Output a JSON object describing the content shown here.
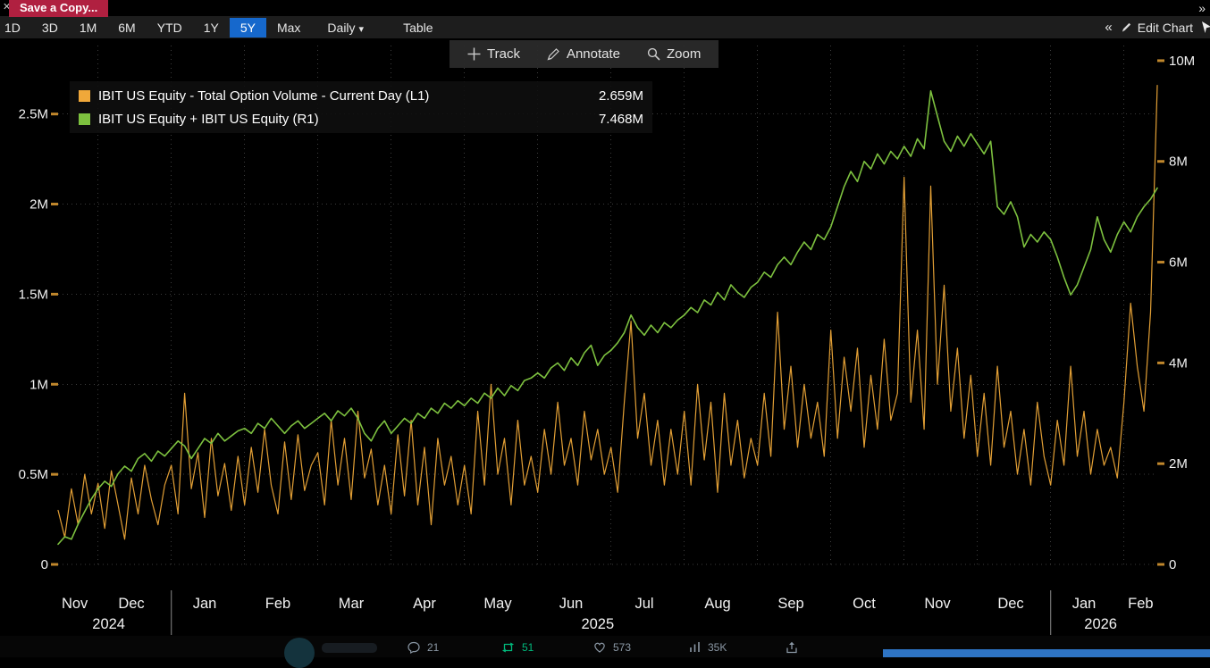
{
  "window": {
    "close_label": "✕",
    "save_copy_label": "Save a Copy...",
    "expand_icon": "»"
  },
  "toolbar": {
    "periods": [
      "1D",
      "3D",
      "1M",
      "6M",
      "YTD",
      "1Y",
      "5Y",
      "Max"
    ],
    "selected": "5Y",
    "frequency": "Daily",
    "frequency_caret": "▾",
    "table": "Table",
    "collapse": "«",
    "edit_chart": "Edit Chart"
  },
  "chart_tools": {
    "track": "Track",
    "annotate": "Annotate",
    "zoom": "Zoom"
  },
  "legend": [
    {
      "color": "#f0a83a",
      "label": "IBIT US Equity - Total Option Volume - Current Day (L1)",
      "value": "2.659M"
    },
    {
      "color": "#7dc13f",
      "label": "IBIT US Equity + IBIT US Equity (R1)",
      "value": "7.468M"
    }
  ],
  "chart_data": {
    "type": "line",
    "frequency": "Daily",
    "range": "5Y",
    "background": "#000000",
    "grid": "dotted",
    "left_axis": {
      "ticks": [
        "0",
        "0.5M",
        "1M",
        "1.5M",
        "2M",
        "2.5M"
      ],
      "tick_values": [
        0,
        0.5,
        1,
        1.5,
        2,
        2.5
      ],
      "scale_max": 2.88,
      "tick_color": "#c0872c"
    },
    "right_axis": {
      "ticks": [
        "0",
        "2M",
        "4M",
        "6M",
        "8M",
        "10M"
      ],
      "tick_values": [
        0,
        2,
        4,
        6,
        8,
        10
      ],
      "scale_max": 10.3,
      "tick_color": "#c0872c"
    },
    "x_axis": {
      "months": [
        {
          "label": "Nov",
          "start": 0,
          "center": 2.5
        },
        {
          "label": "Dec",
          "start": 6,
          "center": 11
        },
        {
          "label": "Jan",
          "start": 17,
          "center": 22,
          "sep": true
        },
        {
          "label": "Feb",
          "start": 28,
          "center": 33
        },
        {
          "label": "Mar",
          "start": 39,
          "center": 44
        },
        {
          "label": "Apr",
          "start": 50,
          "center": 55
        },
        {
          "label": "May",
          "start": 61,
          "center": 66
        },
        {
          "label": "Jun",
          "start": 72,
          "center": 77
        },
        {
          "label": "Jul",
          "start": 83,
          "center": 88
        },
        {
          "label": "Aug",
          "start": 94,
          "center": 99
        },
        {
          "label": "Sep",
          "start": 105,
          "center": 110
        },
        {
          "label": "Oct",
          "start": 116,
          "center": 121
        },
        {
          "label": "Nov",
          "start": 127,
          "center": 132
        },
        {
          "label": "Dec",
          "start": 138,
          "center": 143
        },
        {
          "label": "Jan",
          "start": 149,
          "center": 154,
          "sep": true
        },
        {
          "label": "Feb",
          "start": 160,
          "center": 162.5
        }
      ],
      "years": [
        {
          "label": "2024",
          "center": 7.6
        },
        {
          "label": "2025",
          "center": 81
        },
        {
          "label": "2026",
          "center": 156.5
        }
      ]
    },
    "series": [
      {
        "name": "IBIT US Equity - Total Option Volume - Current Day (L1)",
        "axis": "left",
        "color": "#e29f35",
        "width": 1.2,
        "current_value": "2.659M",
        "values": [
          0.3,
          0.15,
          0.42,
          0.22,
          0.5,
          0.28,
          0.45,
          0.2,
          0.52,
          0.33,
          0.14,
          0.48,
          0.28,
          0.55,
          0.36,
          0.22,
          0.44,
          0.55,
          0.28,
          0.95,
          0.42,
          0.62,
          0.26,
          0.7,
          0.38,
          0.56,
          0.3,
          0.6,
          0.33,
          0.65,
          0.4,
          0.75,
          0.44,
          0.28,
          0.68,
          0.36,
          0.72,
          0.41,
          0.55,
          0.62,
          0.33,
          0.8,
          0.44,
          0.7,
          0.36,
          0.85,
          0.48,
          0.64,
          0.33,
          0.55,
          0.28,
          0.72,
          0.38,
          0.8,
          0.33,
          0.65,
          0.22,
          0.7,
          0.44,
          0.6,
          0.33,
          0.55,
          0.28,
          0.85,
          0.44,
          1.0,
          0.5,
          0.7,
          0.33,
          0.8,
          0.44,
          0.6,
          0.4,
          0.75,
          0.5,
          0.9,
          0.55,
          0.7,
          0.44,
          0.85,
          0.58,
          0.75,
          0.5,
          0.65,
          0.4,
          0.9,
          1.35,
          0.7,
          0.95,
          0.55,
          0.8,
          0.44,
          0.75,
          0.5,
          0.85,
          0.44,
          1.0,
          0.58,
          0.9,
          0.4,
          0.95,
          0.55,
          0.8,
          0.48,
          0.7,
          0.55,
          0.95,
          0.6,
          1.4,
          0.75,
          1.1,
          0.65,
          1.0,
          0.7,
          0.9,
          0.6,
          1.3,
          0.7,
          1.15,
          0.85,
          1.2,
          0.65,
          1.05,
          0.75,
          1.25,
          0.8,
          0.95,
          2.15,
          0.9,
          1.3,
          0.75,
          2.1,
          1.0,
          1.55,
          0.85,
          1.2,
          0.7,
          1.05,
          0.6,
          0.95,
          0.55,
          1.1,
          0.65,
          0.85,
          0.5,
          0.75,
          0.44,
          0.9,
          0.6,
          0.44,
          0.8,
          0.55,
          1.1,
          0.6,
          0.85,
          0.5,
          0.75,
          0.55,
          0.65,
          0.48,
          0.9,
          1.45,
          1.1,
          0.85,
          1.4,
          2.659
        ]
      },
      {
        "name": "IBIT US Equity + IBIT US Equity (R1)",
        "axis": "right",
        "color": "#7dc13f",
        "width": 1.6,
        "current_value": "7.468M",
        "values": [
          0.4,
          0.55,
          0.5,
          0.8,
          1.05,
          1.3,
          1.5,
          1.65,
          1.55,
          1.8,
          1.95,
          1.85,
          2.1,
          2.2,
          2.05,
          2.25,
          2.15,
          2.3,
          2.45,
          2.35,
          2.1,
          2.3,
          2.5,
          2.4,
          2.6,
          2.45,
          2.55,
          2.65,
          2.7,
          2.6,
          2.8,
          2.7,
          2.9,
          2.75,
          2.6,
          2.75,
          2.85,
          2.7,
          2.8,
          2.9,
          3.0,
          2.85,
          3.05,
          2.95,
          3.1,
          2.9,
          2.6,
          2.45,
          2.7,
          2.85,
          2.6,
          2.75,
          2.9,
          2.8,
          3.0,
          2.9,
          3.1,
          3.0,
          3.2,
          3.1,
          3.25,
          3.15,
          3.3,
          3.2,
          3.4,
          3.3,
          3.5,
          3.35,
          3.55,
          3.45,
          3.65,
          3.7,
          3.8,
          3.7,
          3.9,
          4.0,
          3.85,
          4.1,
          3.95,
          4.2,
          4.35,
          3.95,
          4.15,
          4.25,
          4.4,
          4.6,
          4.95,
          4.7,
          4.55,
          4.75,
          4.6,
          4.8,
          4.7,
          4.85,
          4.95,
          5.1,
          5.0,
          5.25,
          5.15,
          5.4,
          5.25,
          5.55,
          5.4,
          5.3,
          5.5,
          5.6,
          5.8,
          5.7,
          5.95,
          6.1,
          5.95,
          6.2,
          6.4,
          6.25,
          6.55,
          6.45,
          6.7,
          7.1,
          7.5,
          7.8,
          7.6,
          8.0,
          7.85,
          8.15,
          7.95,
          8.2,
          8.05,
          8.3,
          8.1,
          8.45,
          8.25,
          9.4,
          8.9,
          8.4,
          8.2,
          8.5,
          8.3,
          8.55,
          8.35,
          8.15,
          8.4,
          7.1,
          6.95,
          7.2,
          6.9,
          6.3,
          6.55,
          6.4,
          6.6,
          6.45,
          6.1,
          5.7,
          5.35,
          5.55,
          5.9,
          6.25,
          6.9,
          6.45,
          6.2,
          6.55,
          6.8,
          6.6,
          6.9,
          7.1,
          7.25,
          7.47
        ]
      }
    ]
  },
  "footer": {
    "reply_count": "21",
    "repost_count": "51",
    "like_count": "573",
    "view_count": "35K",
    "repost_color": "#00ba7c"
  }
}
